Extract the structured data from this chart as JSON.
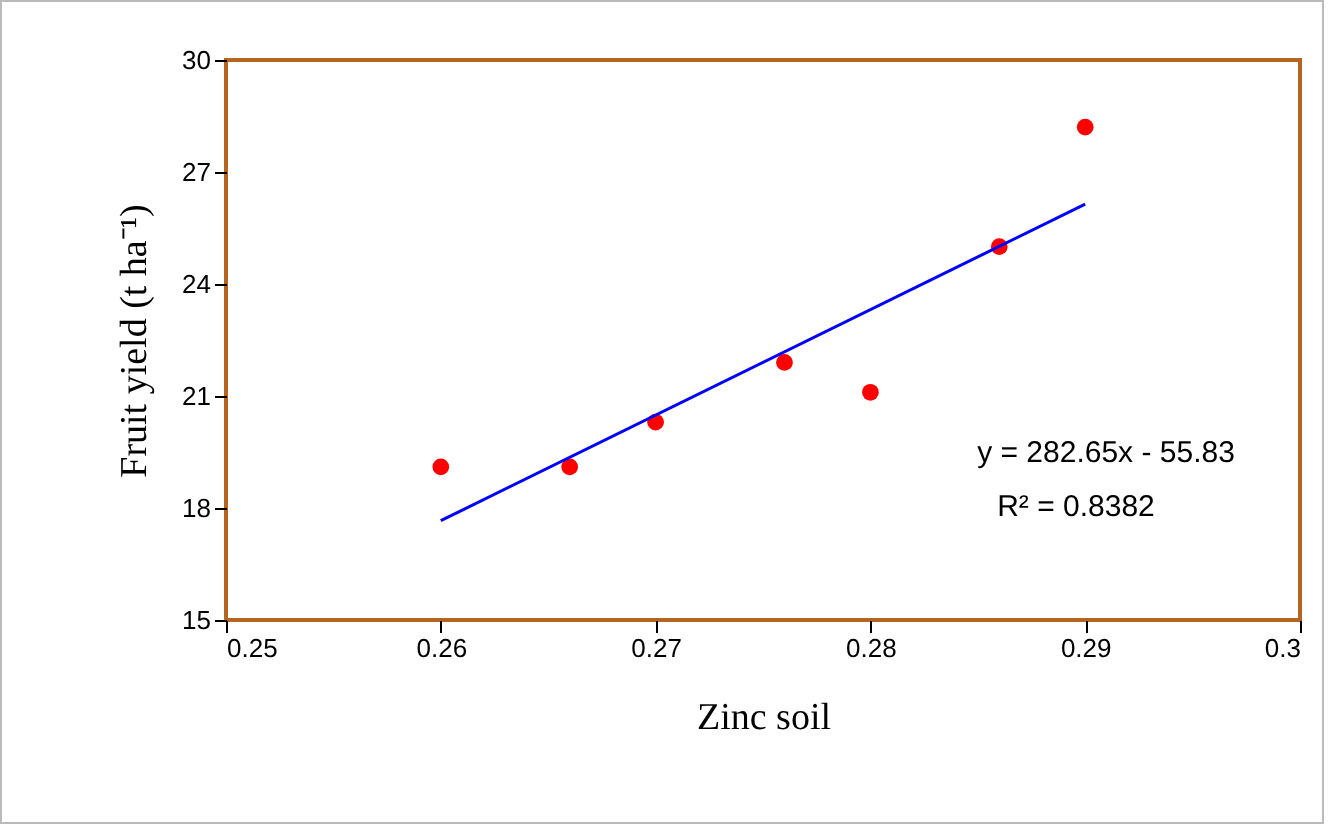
{
  "chart_data": {
    "type": "scatter",
    "xlabel": "Zinc soil",
    "ylabel": "Fruit yield (t ha⁻¹)",
    "x": [
      0.26,
      0.266,
      0.27,
      0.276,
      0.28,
      0.286,
      0.29
    ],
    "series": [
      {
        "marker": "circle",
        "color": "#ff0000",
        "values": [
          19.1,
          19.1,
          20.3,
          21.9,
          21.1,
          25.0,
          28.2
        ]
      },
      {
        "type": "line",
        "marker": "none",
        "color": "#0000ff",
        "x": [
          0.26,
          0.29
        ],
        "values": [
          17.66,
          26.14
        ]
      }
    ],
    "xlim": [
      0.25,
      0.3
    ],
    "xticks": [
      0.25,
      0.26,
      0.27,
      0.28,
      0.29,
      0.3
    ],
    "ylim": [
      15,
      30
    ],
    "yticks": [
      15,
      18,
      21,
      24,
      27,
      30
    ],
    "grid": false,
    "annotations": [
      "y = 282.65x - 55.83",
      "R² = 0.8382"
    ]
  }
}
